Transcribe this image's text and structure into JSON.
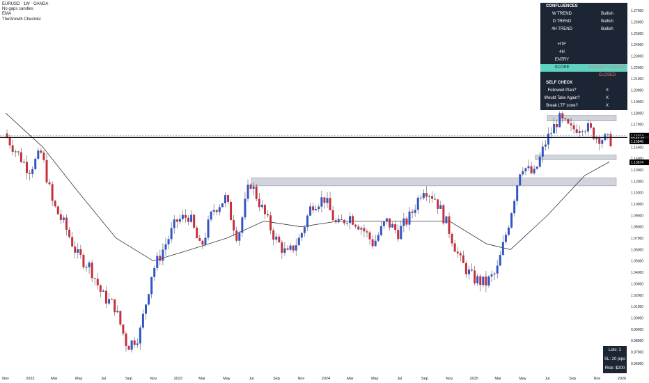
{
  "header": {
    "symbol_line": "EURUSD · 1W · OANDA",
    "indicators": [
      "No gaps candles",
      "EMA",
      "TheGrowth Checklist"
    ]
  },
  "colors": {
    "bull": "#3155c4",
    "bear": "#c4303f",
    "wick": "#555555",
    "ema": "#333333",
    "zone_fill": "#d1d4dc",
    "zone_stroke": "#9598a1",
    "panel_bg": "#1c2533",
    "score_bg": "#5ed3c2",
    "score_text": "#e57373"
  },
  "confluences": {
    "title": "CONFLUENCES",
    "trend_rows": [
      {
        "label": "W TREND",
        "value": "Bullish"
      },
      {
        "label": "D TREND",
        "value": "Bullish"
      },
      {
        "label": "4H TREND",
        "value": "Bullish"
      }
    ],
    "tf_rows": [
      {
        "label": "HTF",
        "value": ""
      },
      {
        "label": "4H",
        "value": ""
      },
      {
        "label": "ENTRY",
        "value": ""
      }
    ],
    "score_label": "SCORE",
    "score_value": "NO DAILY CANDLE CLOSED"
  },
  "self_check": {
    "title": "SELF CHECK",
    "rows": [
      {
        "label": "Followed Plan?",
        "value": "X"
      },
      {
        "label": "Would Take Again?",
        "value": "X"
      },
      {
        "label": "Break LTF zone?",
        "value": "X"
      }
    ]
  },
  "lots_box": {
    "lots": "Lots: 1",
    "sl": "SL: 20 pips",
    "risk": "Risk: $200"
  },
  "chart_data": {
    "type": "candlestick",
    "symbol": "EURUSD",
    "timeframe": "1W",
    "ylim": [
      0.955,
      1.275
    ],
    "y_ticks": [
      1.27,
      1.26,
      1.25,
      1.24,
      1.23,
      1.22,
      1.21,
      1.2,
      1.19,
      1.18,
      1.17,
      1.16,
      1.15,
      1.14,
      1.13,
      1.12,
      1.11,
      1.1,
      1.09,
      1.08,
      1.07,
      1.06,
      1.05,
      1.04,
      1.03,
      1.02,
      1.01,
      1.0,
      0.99,
      0.98,
      0.97,
      0.96
    ],
    "y_tick_labels": [
      "1.27000",
      "1.26000",
      "1.25000",
      "1.24000",
      "1.23000",
      "1.22000",
      "1.21000",
      "1.20000",
      "1.19000",
      "1.18000",
      "1.17000",
      "1.16000",
      "1.15000",
      "1.14000",
      "1.13000",
      "1.12000",
      "1.11000",
      "1.10000",
      "1.09000",
      "1.08000",
      "1.07000",
      "1.06000",
      "1.05000",
      "1.04000",
      "1.03000",
      "1.02000",
      "1.01000",
      "1.00000",
      "0.99000",
      "0.98000",
      "0.97000",
      "0.96000"
    ],
    "x_labels": [
      "Nov",
      "2022",
      "Mar",
      "May",
      "Jul",
      "Sep",
      "Nov",
      "2023",
      "Mar",
      "May",
      "Jul",
      "Sep",
      "Nov",
      "2024",
      "Mar",
      "May",
      "Jul",
      "Sep",
      "Nov",
      "2025",
      "Mar",
      "May",
      "Jul",
      "Sep",
      "Nov",
      "2026"
    ],
    "x_label_dates": [
      "2021-11",
      "2022-01",
      "2022-03",
      "2022-05",
      "2022-07",
      "2022-09",
      "2022-11",
      "2023-01",
      "2023-03",
      "2023-05",
      "2023-07",
      "2023-09",
      "2023-11",
      "2024-01",
      "2024-03",
      "2024-05",
      "2024-07",
      "2024-09",
      "2024-11",
      "2025-01",
      "2025-03",
      "2025-05",
      "2025-07",
      "2025-09",
      "2025-11",
      "2026-01"
    ],
    "anchor_points": [
      {
        "date": "2021-11",
        "price": 1.162
      },
      {
        "date": "2022-01",
        "price": 1.13
      },
      {
        "date": "2022-02",
        "price": 1.145
      },
      {
        "date": "2022-03",
        "price": 1.1
      },
      {
        "date": "2022-04",
        "price": 1.08
      },
      {
        "date": "2022-05",
        "price": 1.055
      },
      {
        "date": "2022-06",
        "price": 1.045
      },
      {
        "date": "2022-07",
        "price": 1.02
      },
      {
        "date": "2022-08",
        "price": 1.01
      },
      {
        "date": "2022-09",
        "price": 0.975
      },
      {
        "date": "2022-10",
        "price": 0.985
      },
      {
        "date": "2022-11",
        "price": 1.04
      },
      {
        "date": "2023-01",
        "price": 1.085
      },
      {
        "date": "2023-02",
        "price": 1.09
      },
      {
        "date": "2023-03",
        "price": 1.06
      },
      {
        "date": "2023-04",
        "price": 1.095
      },
      {
        "date": "2023-05",
        "price": 1.105
      },
      {
        "date": "2023-06",
        "price": 1.07
      },
      {
        "date": "2023-07",
        "price": 1.12
      },
      {
        "date": "2023-08",
        "price": 1.095
      },
      {
        "date": "2023-09",
        "price": 1.07
      },
      {
        "date": "2023-10",
        "price": 1.055
      },
      {
        "date": "2023-11",
        "price": 1.07
      },
      {
        "date": "2023-12",
        "price": 1.1
      },
      {
        "date": "2024-01",
        "price": 1.105
      },
      {
        "date": "2024-02",
        "price": 1.08
      },
      {
        "date": "2024-03",
        "price": 1.09
      },
      {
        "date": "2024-04",
        "price": 1.08
      },
      {
        "date": "2024-05",
        "price": 1.065
      },
      {
        "date": "2024-06",
        "price": 1.085
      },
      {
        "date": "2024-07",
        "price": 1.075
      },
      {
        "date": "2024-08",
        "price": 1.09
      },
      {
        "date": "2024-09",
        "price": 1.115
      },
      {
        "date": "2024-10",
        "price": 1.105
      },
      {
        "date": "2024-11",
        "price": 1.08
      },
      {
        "date": "2024-12",
        "price": 1.05
      },
      {
        "date": "2025-01",
        "price": 1.035
      },
      {
        "date": "2025-02",
        "price": 1.03
      },
      {
        "date": "2025-03",
        "price": 1.04
      },
      {
        "date": "2025-04",
        "price": 1.085
      },
      {
        "date": "2025-05",
        "price": 1.135
      },
      {
        "date": "2025-06",
        "price": 1.125
      },
      {
        "date": "2025-07",
        "price": 1.155
      },
      {
        "date": "2025-08",
        "price": 1.175
      },
      {
        "date": "2025-09",
        "price": 1.165
      },
      {
        "date": "2025-10",
        "price": 1.17
      },
      {
        "date": "2025-11",
        "price": 1.16
      },
      {
        "date": "2025-12",
        "price": 1.156
      }
    ],
    "ema_points": [
      {
        "date": "2021-11",
        "price": 1.18
      },
      {
        "date": "2022-02",
        "price": 1.15
      },
      {
        "date": "2022-05",
        "price": 1.11
      },
      {
        "date": "2022-08",
        "price": 1.07
      },
      {
        "date": "2022-11",
        "price": 1.05
      },
      {
        "date": "2023-02",
        "price": 1.06
      },
      {
        "date": "2023-05",
        "price": 1.07
      },
      {
        "date": "2023-08",
        "price": 1.085
      },
      {
        "date": "2023-11",
        "price": 1.08
      },
      {
        "date": "2024-02",
        "price": 1.085
      },
      {
        "date": "2024-05",
        "price": 1.085
      },
      {
        "date": "2024-08",
        "price": 1.085
      },
      {
        "date": "2024-11",
        "price": 1.085
      },
      {
        "date": "2025-02",
        "price": 1.065
      },
      {
        "date": "2025-04",
        "price": 1.06
      },
      {
        "date": "2025-07",
        "price": 1.09
      },
      {
        "date": "2025-10",
        "price": 1.125
      },
      {
        "date": "2025-12",
        "price": 1.137
      }
    ],
    "zones": [
      {
        "name": "upper-resistance-zone",
        "from_date": "2023-07",
        "to_date": "2025-12",
        "price_top": 1.123,
        "price_bottom": 1.116
      },
      {
        "name": "support-zone",
        "from_date": "2025-06",
        "to_date": "2025-12",
        "price_top": 1.143,
        "price_bottom": 1.139
      },
      {
        "name": "top-range-zone",
        "from_date": "2025-07",
        "to_date": "2025-12",
        "price_top": 1.178,
        "price_bottom": 1.173
      }
    ],
    "horizontal_lines": [
      {
        "name": "key-level-line",
        "price": 1.1585
      },
      {
        "name": "ltf-line",
        "price": 1.1601
      }
    ],
    "price_labels": [
      {
        "text": "1.16014",
        "price": 1.1601,
        "style": "black"
      },
      {
        "text": "02:56:32",
        "price": 1.1575,
        "style": "blue"
      },
      {
        "text": "1.15846",
        "price": 1.155,
        "style": "black"
      },
      {
        "text": "1.13674",
        "price": 1.1367,
        "style": "black"
      }
    ],
    "grid": false,
    "legend": "none"
  }
}
